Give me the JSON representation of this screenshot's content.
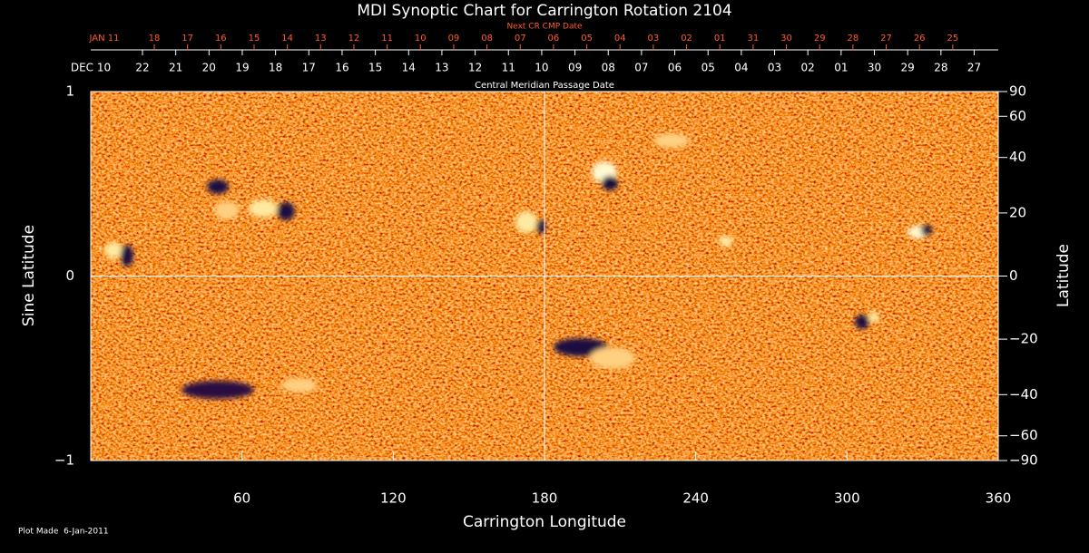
{
  "chart_data": {
    "type": "synoptic-map",
    "title": "MDI Synoptic Chart for Carrington Rotation 2104",
    "next_cr_label": "Next CR CMP Date",
    "next_cr_dates": [
      "JAN 11",
      "18",
      "17",
      "16",
      "15",
      "14",
      "13",
      "12",
      "11",
      "10",
      "09",
      "08",
      "07",
      "06",
      "05",
      "04",
      "03",
      "02",
      "01",
      "31",
      "30",
      "29",
      "28",
      "27",
      "26",
      "25"
    ],
    "cmp_dates": [
      "DEC 10",
      "22",
      "21",
      "20",
      "19",
      "18",
      "17",
      "16",
      "15",
      "14",
      "13",
      "12",
      "11",
      "10",
      "09",
      "08",
      "07",
      "06",
      "05",
      "04",
      "03",
      "02",
      "01",
      "30",
      "29",
      "28",
      "27"
    ],
    "cmp_label": "Central Meridian Passage Date",
    "xlabel": "Carrington Longitude",
    "xlim": [
      0,
      360
    ],
    "xticks": [
      60,
      120,
      180,
      240,
      300,
      360
    ],
    "ylabel": "Sine Latitude",
    "ylim": [
      -1,
      1
    ],
    "yticks": [
      1,
      0,
      {
        "value": -1,
        "label": "−1"
      }
    ],
    "y2label": "Latitude",
    "y2lim": [
      -90,
      90
    ],
    "y2scale": "sine",
    "y2ticks": [
      90,
      60,
      40,
      20,
      0,
      {
        "value": -20,
        "label": "−20"
      },
      {
        "value": -40,
        "label": "−40"
      },
      {
        "value": -60,
        "label": "−60"
      },
      {
        "value": -90,
        "label": "−90"
      }
    ],
    "footer": "Plot Made  6-Jan-2011"
  }
}
